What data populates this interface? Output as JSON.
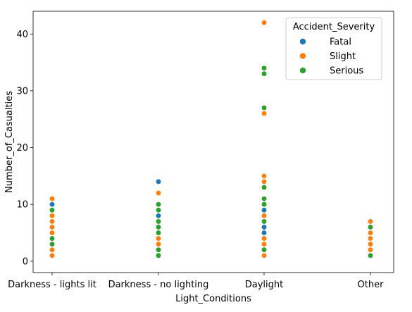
{
  "chart_data": {
    "type": "scatter",
    "title": "",
    "xlabel": "Light_Conditions",
    "ylabel": "Number_of_Casualties",
    "categories": [
      "Darkness - lights lit",
      "Darkness - no lighting",
      "Daylight",
      "Other"
    ],
    "ylim": [
      -2,
      44
    ],
    "yticks": [
      0,
      10,
      20,
      30,
      40
    ],
    "grid": false,
    "legend": {
      "title": "Accident_Severity",
      "placement": "top-right"
    },
    "series": [
      {
        "name": "Fatal",
        "color": "#1f77b4",
        "points": [
          {
            "x": "Darkness - lights lit",
            "y": 10
          },
          {
            "x": "Darkness - no lighting",
            "y": 14
          },
          {
            "x": "Darkness - no lighting",
            "y": 8
          },
          {
            "x": "Daylight",
            "y": 9
          },
          {
            "x": "Daylight",
            "y": 6
          },
          {
            "x": "Daylight",
            "y": 5
          }
        ]
      },
      {
        "name": "Slight",
        "color": "#ff7f0e",
        "points": [
          {
            "x": "Darkness - lights lit",
            "y": 11
          },
          {
            "x": "Darkness - lights lit",
            "y": 8
          },
          {
            "x": "Darkness - lights lit",
            "y": 7
          },
          {
            "x": "Darkness - lights lit",
            "y": 6
          },
          {
            "x": "Darkness - lights lit",
            "y": 5
          },
          {
            "x": "Darkness - lights lit",
            "y": 2
          },
          {
            "x": "Darkness - lights lit",
            "y": 1
          },
          {
            "x": "Darkness - no lighting",
            "y": 12
          },
          {
            "x": "Darkness - no lighting",
            "y": 4
          },
          {
            "x": "Darkness - no lighting",
            "y": 3
          },
          {
            "x": "Daylight",
            "y": 42
          },
          {
            "x": "Daylight",
            "y": 26
          },
          {
            "x": "Daylight",
            "y": 15
          },
          {
            "x": "Daylight",
            "y": 14
          },
          {
            "x": "Daylight",
            "y": 8
          },
          {
            "x": "Daylight",
            "y": 4
          },
          {
            "x": "Daylight",
            "y": 3
          },
          {
            "x": "Daylight",
            "y": 1
          },
          {
            "x": "Other",
            "y": 7
          },
          {
            "x": "Other",
            "y": 5
          },
          {
            "x": "Other",
            "y": 4
          },
          {
            "x": "Other",
            "y": 3
          },
          {
            "x": "Other",
            "y": 2
          }
        ]
      },
      {
        "name": "Serious",
        "color": "#2ca02c",
        "points": [
          {
            "x": "Darkness - lights lit",
            "y": 9
          },
          {
            "x": "Darkness - lights lit",
            "y": 4
          },
          {
            "x": "Darkness - lights lit",
            "y": 3
          },
          {
            "x": "Darkness - no lighting",
            "y": 10
          },
          {
            "x": "Darkness - no lighting",
            "y": 9
          },
          {
            "x": "Darkness - no lighting",
            "y": 7
          },
          {
            "x": "Darkness - no lighting",
            "y": 6
          },
          {
            "x": "Darkness - no lighting",
            "y": 5
          },
          {
            "x": "Darkness - no lighting",
            "y": 2
          },
          {
            "x": "Darkness - no lighting",
            "y": 1
          },
          {
            "x": "Daylight",
            "y": 34
          },
          {
            "x": "Daylight",
            "y": 33
          },
          {
            "x": "Daylight",
            "y": 27
          },
          {
            "x": "Daylight",
            "y": 13
          },
          {
            "x": "Daylight",
            "y": 11
          },
          {
            "x": "Daylight",
            "y": 10
          },
          {
            "x": "Daylight",
            "y": 7
          },
          {
            "x": "Daylight",
            "y": 2
          },
          {
            "x": "Other",
            "y": 6
          },
          {
            "x": "Other",
            "y": 1
          }
        ]
      }
    ]
  }
}
